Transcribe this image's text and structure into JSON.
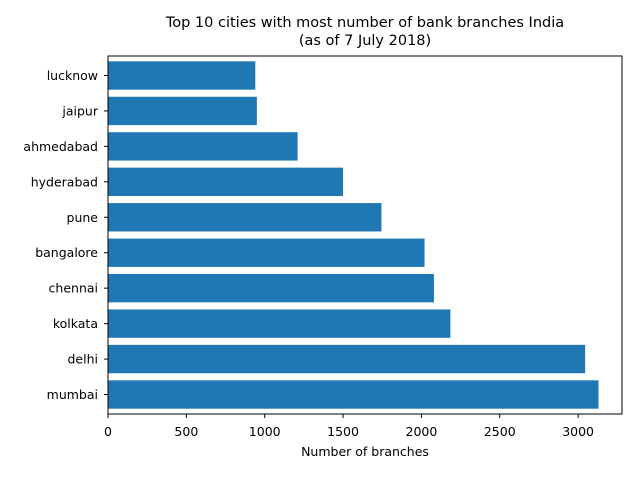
{
  "chart_data": {
    "type": "bar",
    "orientation": "horizontal",
    "title": "Top 10 cities with most number of bank branches India",
    "subtitle": "(as of 7 July 2018)",
    "xlabel": "Number of branches",
    "ylabel": "",
    "xlim": [
      0,
      3280
    ],
    "xticks": [
      0,
      500,
      1000,
      1500,
      2000,
      2500,
      3000
    ],
    "categories": [
      "mumbai",
      "delhi",
      "kolkata",
      "chennai",
      "bangalore",
      "pune",
      "hyderabad",
      "ahmedabad",
      "jaipur",
      "lucknow"
    ],
    "values": [
      3130,
      3045,
      2185,
      2080,
      2020,
      1745,
      1500,
      1210,
      950,
      940
    ],
    "bar_color": "#1f77b4",
    "grid": false,
    "legend": "none"
  }
}
